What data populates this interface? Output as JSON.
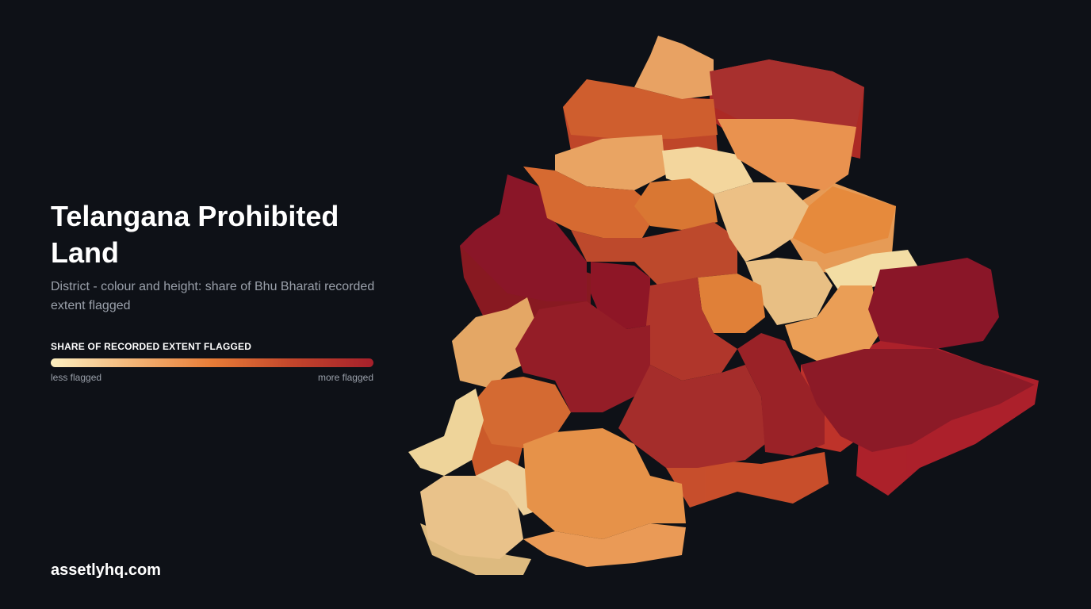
{
  "title": "Telangana Prohibited Land",
  "subtitle": "District - colour and height: share of Bhu Bharati recorded extent flagged",
  "legend": {
    "title": "SHARE OF RECORDED EXTENT FLAGGED",
    "low_label": "less flagged",
    "high_label": "more flagged",
    "colors": [
      "#fdefc0",
      "#f3b678",
      "#e77c37",
      "#c2452b",
      "#a6202b"
    ]
  },
  "brand": "assetlyhq.com",
  "background": "#0e1117"
}
